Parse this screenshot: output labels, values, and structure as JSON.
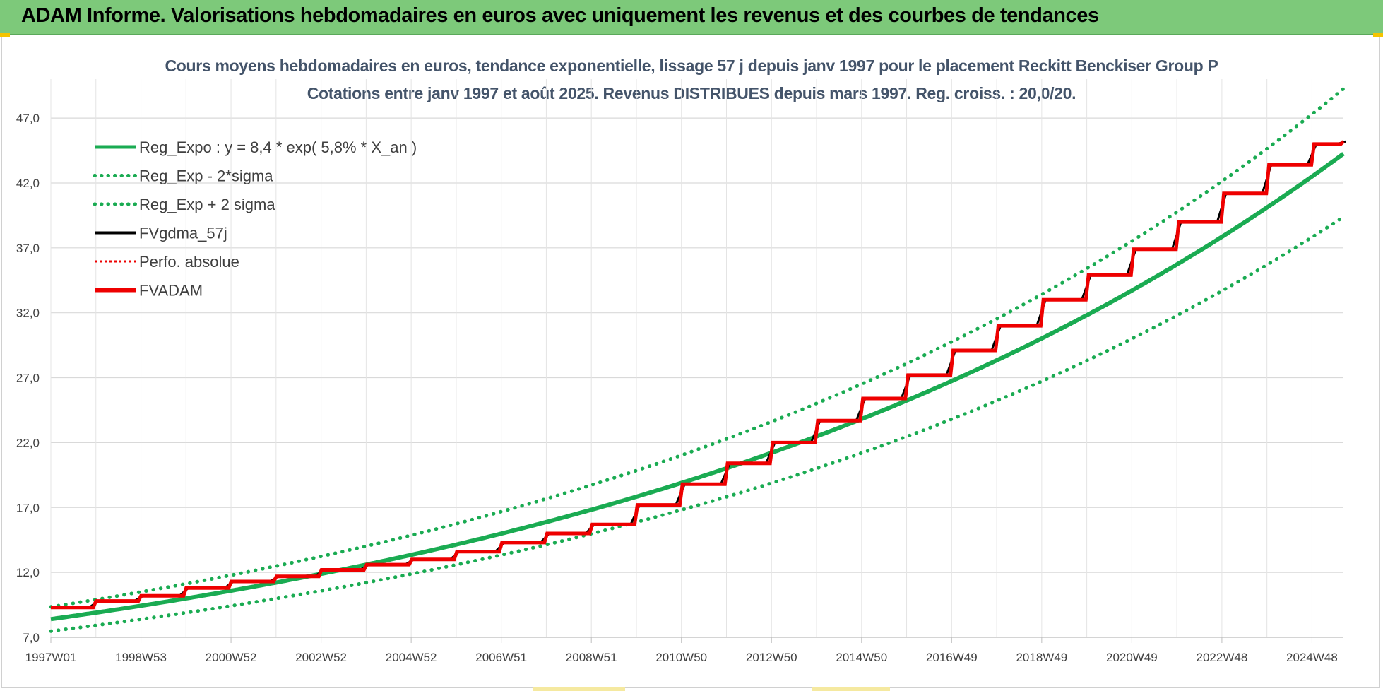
{
  "banner": {
    "title": "ADAM Informe. Valorisations hebdomadaires en euros avec uniquement les revenus et des courbes de tendances"
  },
  "colors": {
    "banner_bg": "#7dc97a",
    "trend_green": "#1aab52",
    "dotted_green": "#1aab52",
    "fv_black": "#000000",
    "fv_red": "#ee0000",
    "title_text": "#44546a",
    "grid": "#d9d9d9"
  },
  "chart_data": {
    "type": "line",
    "title": "Cours moyens hebdomadaires en euros, tendance exponentielle, lissage 57 j depuis janv 1997 pour le placement Reckitt Benckiser Group P",
    "subtitle": "Cotations entre janv 1997 et août 2025. Revenus DISTRIBUES depuis mars 1997. Reg. croiss. : 20,0/20.",
    "xlabel": "",
    "ylabel": "",
    "x_ticks": [
      "1997W01",
      "1998W53",
      "2000W52",
      "2002W52",
      "2004W52",
      "2006W51",
      "2008W51",
      "2010W50",
      "2012W50",
      "2014W50",
      "2016W49",
      "2018W49",
      "2020W49",
      "2022W48",
      "2024W48"
    ],
    "x_range": [
      1997.0,
      2025.65
    ],
    "y_ticks": [
      "7,0",
      "12,0",
      "17,0",
      "22,0",
      "27,0",
      "32,0",
      "37,0",
      "42,0",
      "47,0"
    ],
    "ylim": [
      7,
      50
    ],
    "grid": true,
    "legend_position": "top-left",
    "trend": {
      "a": 8.4,
      "rate": 0.058,
      "sigma_factor_low": 0.89,
      "sigma_factor_high": 1.113
    },
    "series": [
      {
        "name": "Reg_Expo : y = 8,4 * exp( 5,8% *  X_an )",
        "style": "solid",
        "color": "#1aab52",
        "kind": "trend"
      },
      {
        "name": "Reg_Exp - 2*sigma",
        "style": "dotted",
        "color": "#1aab52",
        "kind": "trend_low"
      },
      {
        "name": "Reg_Exp + 2 sigma",
        "style": "dotted",
        "color": "#1aab52",
        "kind": "trend_high"
      },
      {
        "name": "FVgdma_57j",
        "style": "solid",
        "color": "#000000",
        "kind": "fv_smooth"
      },
      {
        "name": "Perfo. absolue",
        "style": "dotted",
        "color": "#ee0000",
        "kind": "perfo"
      },
      {
        "name": "FVADAM",
        "style": "step",
        "color": "#ee0000",
        "kind": "fv_step",
        "x": [
          1997.0,
          1998.0,
          1999.0,
          2000.0,
          2001.0,
          2002.0,
          2003.0,
          2004.0,
          2005.0,
          2006.0,
          2007.0,
          2008.0,
          2009.0,
          2010.0,
          2011.0,
          2012.0,
          2013.0,
          2014.0,
          2015.0,
          2016.0,
          2017.0,
          2018.0,
          2019.0,
          2020.0,
          2021.0,
          2022.0,
          2023.0,
          2024.0,
          2025.0,
          2025.65
        ],
        "values": [
          9.3,
          9.8,
          10.2,
          10.8,
          11.3,
          11.7,
          12.2,
          12.6,
          13.0,
          13.6,
          14.3,
          15.0,
          15.7,
          17.2,
          18.8,
          20.4,
          22.0,
          23.7,
          25.4,
          27.2,
          29.1,
          31.0,
          33.0,
          34.9,
          36.9,
          39.0,
          41.2,
          43.4,
          45.0,
          45.2
        ]
      }
    ]
  }
}
